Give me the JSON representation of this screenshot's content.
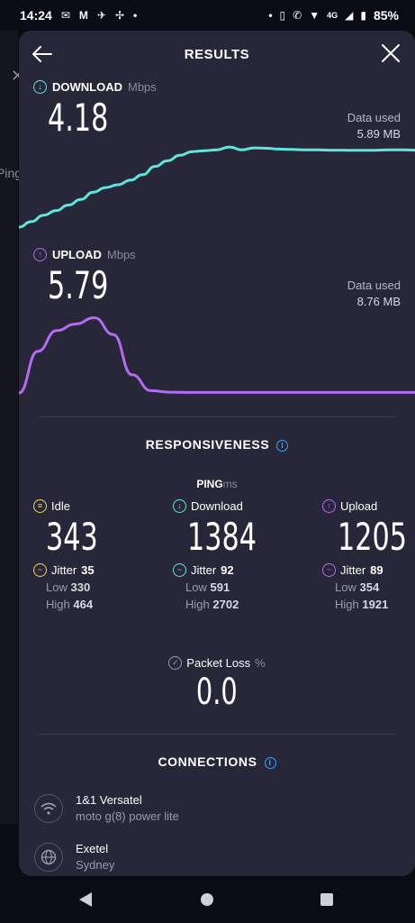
{
  "status_bar": {
    "time": "14:24",
    "network": "4G",
    "battery": "85%"
  },
  "background": {
    "ping_label": "Ping"
  },
  "header": {
    "title": "RESULTS"
  },
  "download": {
    "label": "DOWNLOAD",
    "unit": "Mbps",
    "value": "4.18",
    "data_used_label": "Data used",
    "data_used_value": "5.89 MB",
    "color": "#5ee6de"
  },
  "upload": {
    "label": "UPLOAD",
    "unit": "Mbps",
    "value": "5.79",
    "data_used_label": "Data used",
    "data_used_value": "8.76 MB",
    "color": "#b36cf0"
  },
  "responsiveness": {
    "title": "RESPONSIVENESS",
    "ping_label": "PING",
    "ping_unit": "ms",
    "columns": [
      {
        "label": "Idle",
        "value": "343",
        "jitter_label": "Jitter",
        "jitter": "35",
        "low_label": "Low",
        "low": "330",
        "high_label": "High",
        "high": "464",
        "color": "#f2d74a"
      },
      {
        "label": "Download",
        "value": "1384",
        "jitter_label": "Jitter",
        "jitter": "92",
        "low_label": "Low",
        "low": "591",
        "high_label": "High",
        "high": "2702",
        "color": "#5ee6de"
      },
      {
        "label": "Upload",
        "value": "1205",
        "jitter_label": "Jitter",
        "jitter": "89",
        "low_label": "Low",
        "low": "354",
        "high_label": "High",
        "high": "1921",
        "color": "#b36cf0"
      }
    ],
    "packet_loss_label": "Packet Loss",
    "packet_loss_unit": "%",
    "packet_loss_value": "0.0"
  },
  "connections": {
    "title": "CONNECTIONS",
    "items": [
      {
        "icon": "wifi-icon",
        "name": "1&1 Versatel",
        "detail": "moto g(8) power lite"
      },
      {
        "icon": "globe-icon",
        "name": "Exetel",
        "detail": "Sydney"
      }
    ]
  },
  "chart_data": [
    {
      "type": "line",
      "series": [
        {
          "values": [
            0.0,
            0.3,
            0.65,
            0.9,
            1.2,
            1.5,
            1.9,
            2.15,
            2.3,
            2.55,
            2.85,
            3.3,
            3.6,
            3.9,
            4.1,
            4.15,
            4.2,
            4.35,
            4.2,
            4.3,
            4.28,
            4.24,
            4.22,
            4.2,
            4.2,
            4.18,
            4.18,
            4.17,
            4.17,
            4.18,
            4.2,
            4.2,
            4.18
          ]
        }
      ]
    },
    {
      "type": "line",
      "series": [
        {
          "values": [
            0.0,
            3.2,
            4.8,
            5.3,
            5.79,
            4.5,
            1.4,
            0.18,
            0.06,
            0.04,
            0.04,
            0.04,
            0.04,
            0.04,
            0.04,
            0.04,
            0.04,
            0.04,
            0.04,
            0.04,
            0.04,
            0.04
          ]
        }
      ]
    }
  ]
}
